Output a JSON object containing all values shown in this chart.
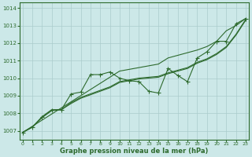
{
  "x": [
    0,
    1,
    2,
    3,
    4,
    5,
    6,
    7,
    8,
    9,
    10,
    11,
    12,
    13,
    14,
    15,
    16,
    17,
    18,
    19,
    20,
    21,
    22,
    23
  ],
  "line_straight": [
    1006.9,
    1007.25,
    1007.6,
    1007.95,
    1008.3,
    1008.65,
    1009.0,
    1009.35,
    1009.7,
    1010.05,
    1010.4,
    1010.5,
    1010.6,
    1010.7,
    1010.8,
    1011.15,
    1011.3,
    1011.45,
    1011.6,
    1011.8,
    1012.1,
    1012.7,
    1013.0,
    1013.4
  ],
  "line_smooth1": [
    1006.9,
    1007.2,
    1007.75,
    1008.15,
    1008.2,
    1008.6,
    1008.9,
    1009.1,
    1009.3,
    1009.5,
    1009.8,
    1009.9,
    1010.0,
    1010.05,
    1010.1,
    1010.3,
    1010.45,
    1010.6,
    1010.9,
    1011.1,
    1011.4,
    1011.8,
    1012.5,
    1013.35
  ],
  "line_smooth2": [
    1006.9,
    1007.2,
    1007.75,
    1008.15,
    1008.2,
    1008.55,
    1008.85,
    1009.05,
    1009.25,
    1009.45,
    1009.75,
    1009.85,
    1009.95,
    1010.0,
    1010.05,
    1010.25,
    1010.4,
    1010.55,
    1010.85,
    1011.05,
    1011.35,
    1011.75,
    1012.45,
    1013.3
  ],
  "line_wiggly": [
    1006.9,
    1007.2,
    1007.8,
    1008.2,
    1008.2,
    1009.1,
    1009.2,
    1010.2,
    1010.2,
    1010.35,
    1010.0,
    1009.85,
    1009.8,
    1009.25,
    1009.15,
    1010.55,
    1010.15,
    1009.8,
    1011.15,
    1011.5,
    1012.1,
    1012.1,
    1013.1,
    1013.4
  ],
  "line_color": "#2d6a2d",
  "bg_color": "#cce8e8",
  "grid_color": "#aacccc",
  "ylim_min": 1006.5,
  "ylim_max": 1014.3,
  "yticks": [
    1007,
    1008,
    1009,
    1010,
    1011,
    1012,
    1013,
    1014
  ],
  "xlabel": "Graphe pression niveau de la mer (hPa)",
  "markersize": 2.0
}
